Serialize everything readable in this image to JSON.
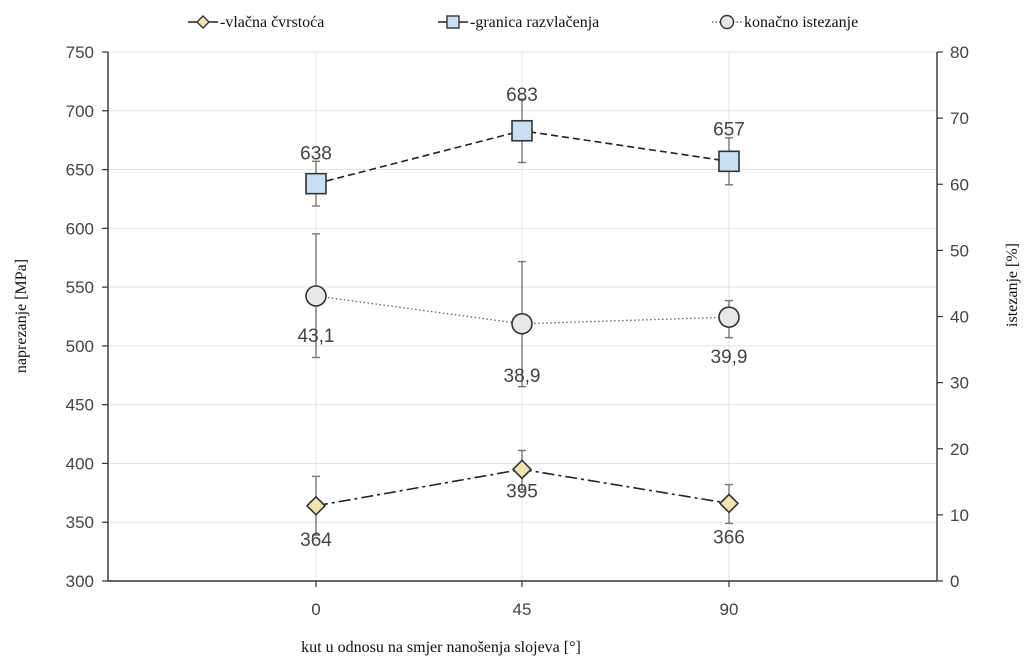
{
  "chart_data": {
    "type": "line",
    "categories": [
      "0",
      "45",
      "90"
    ],
    "xlabel": "kut u odnosu na smjer nanošenja slojeva [°]",
    "ylabel_left": "naprezanje [MPa]",
    "ylabel_right": "istezanje [%]",
    "ylim_left": [
      300,
      750
    ],
    "ylim_right": [
      0,
      80
    ],
    "yticks_left": [
      "300",
      "350",
      "400",
      "450",
      "500",
      "550",
      "600",
      "650",
      "700",
      "750"
    ],
    "yticks_right": [
      "0",
      "10",
      "20",
      "30",
      "40",
      "50",
      "60",
      "70",
      "80"
    ],
    "grid": true,
    "legend_position": "top",
    "series": [
      {
        "name": "vlačna čvrstoća",
        "axis": "left",
        "marker": "diamond",
        "line": "dash-dot",
        "color": "#f0e4b0",
        "values": [
          364,
          395,
          366
        ],
        "err_high": [
          389,
          411,
          382
        ],
        "err_low": [
          339,
          378,
          349
        ],
        "labels": [
          "364",
          "395",
          "366"
        ]
      },
      {
        "name": "granica razvlačenja",
        "axis": "left",
        "marker": "square",
        "line": "dashed",
        "color": "#c9dff2",
        "values": [
          638,
          683,
          657
        ],
        "err_high": [
          657,
          710,
          677
        ],
        "err_low": [
          619,
          656,
          637
        ],
        "labels": [
          "638",
          "683",
          "657"
        ]
      },
      {
        "name": "konačno istezanje",
        "axis": "right",
        "marker": "circle",
        "line": "dotted",
        "color": "#e8e8e8",
        "values": [
          43.1,
          38.9,
          39.9
        ],
        "err_high": [
          52.5,
          48.3,
          42.4
        ],
        "err_low": [
          33.8,
          29.4,
          36.8
        ],
        "labels": [
          "43,1",
          "38,9",
          "39,9"
        ]
      }
    ]
  }
}
